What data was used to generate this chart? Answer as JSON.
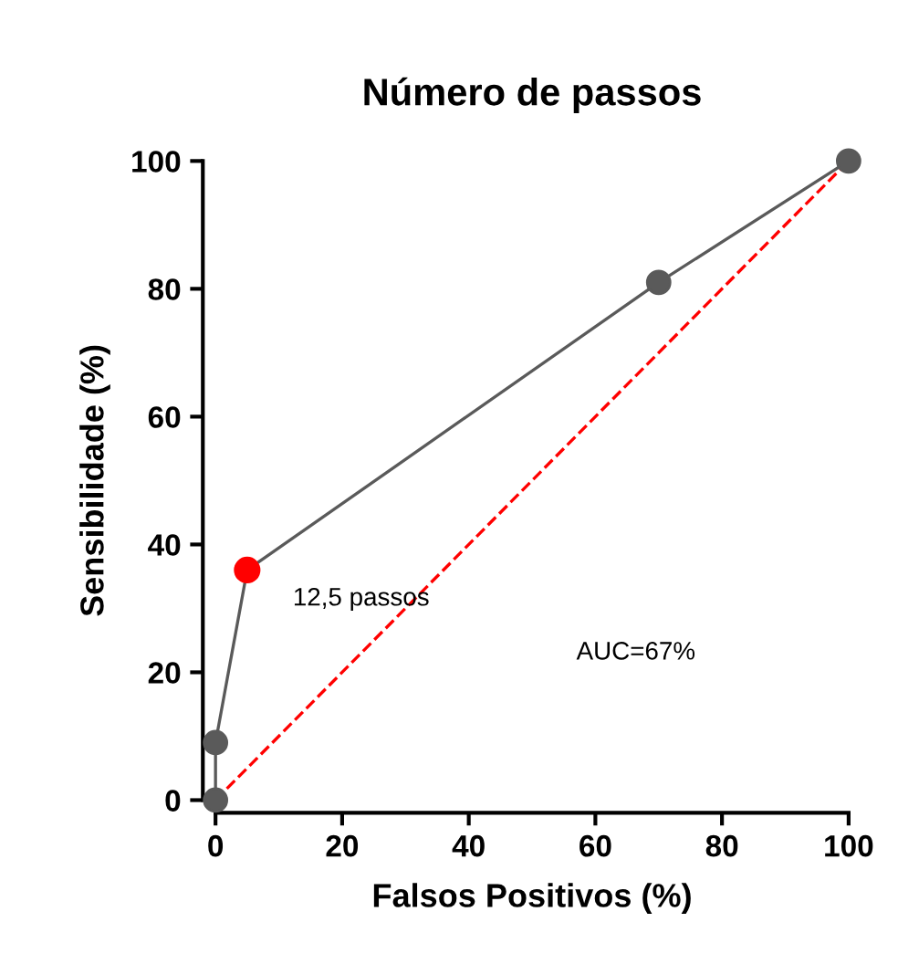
{
  "chart_data": {
    "type": "line",
    "title": "Número de passos",
    "xlabel": "Falsos Positivos (%)",
    "ylabel": "Sensibilidade (%)",
    "xlim": [
      0,
      100
    ],
    "ylim": [
      0,
      100
    ],
    "xticks": [
      0,
      20,
      40,
      60,
      80,
      100
    ],
    "yticks": [
      0,
      20,
      40,
      60,
      80,
      100
    ],
    "grid": false,
    "legend": false,
    "series": [
      {
        "color": "#ff0000",
        "line_style": "dashed",
        "marker": "none",
        "x": [
          0,
          100
        ],
        "values": [
          0,
          100
        ]
      },
      {
        "color": "#5a5a5a",
        "line_style": "solid",
        "marker": "circle",
        "x": [
          0,
          0,
          5,
          70,
          100
        ],
        "values": [
          0,
          9,
          36,
          81,
          100
        ]
      },
      {
        "type": "scatter",
        "color": "#ff0000",
        "marker": "circle",
        "x": [
          5
        ],
        "values": [
          36
        ]
      }
    ],
    "annotations": [
      {
        "text": "12,5 passos",
        "x": 5,
        "y": 36
      },
      "AUC=67%"
    ]
  }
}
